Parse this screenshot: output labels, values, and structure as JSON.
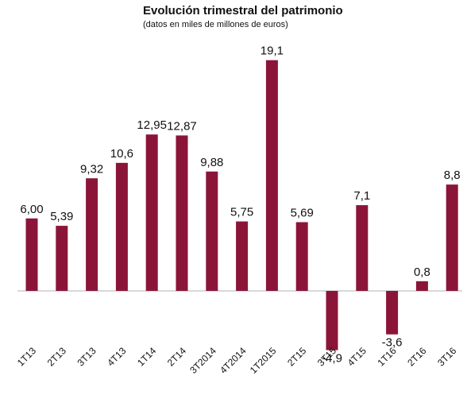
{
  "chart_data": {
    "type": "bar",
    "title": "Evolución trimestral del patrimonio",
    "subtitle": "(datos en miles de millones de euros)",
    "categories": [
      "1T13",
      "2T13",
      "3T13",
      "4T13",
      "1T14",
      "2T14",
      "3T2014",
      "4T2014",
      "1T2015",
      "2T15",
      "3T15",
      "4T15",
      "1T16",
      "2T16",
      "3T16"
    ],
    "values": [
      6.0,
      5.39,
      9.32,
      10.6,
      12.95,
      12.87,
      9.88,
      5.75,
      19.1,
      5.69,
      -4.9,
      7.1,
      -3.6,
      0.8,
      8.8
    ],
    "value_labels": [
      "6,00",
      "5,39",
      "9,32",
      "10,6",
      "12,95",
      "12,87",
      "9,88",
      "5,75",
      "19,1",
      "5,69",
      "-4,9",
      "7,1",
      "-3,6",
      "0,8",
      "8,8"
    ],
    "bar_color": "#8b1538",
    "grid": false,
    "legend": "none"
  }
}
